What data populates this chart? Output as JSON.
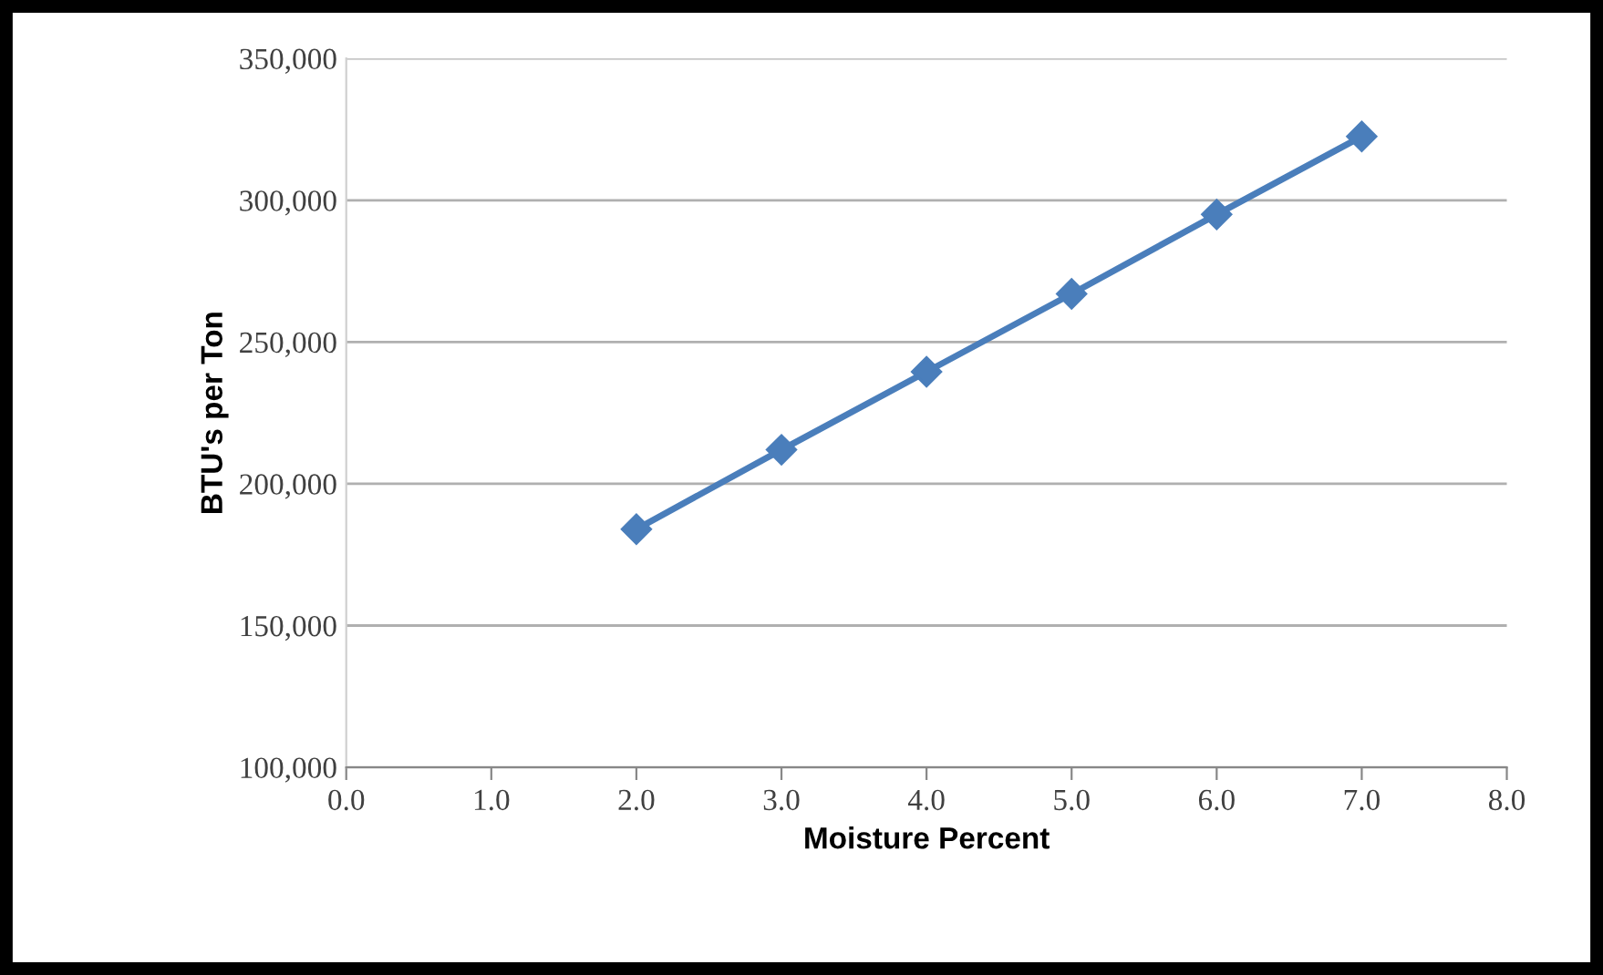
{
  "chart_data": {
    "type": "line",
    "xlabel": "Moisture Percent",
    "ylabel": "BTU's per Ton",
    "x": [
      2,
      3,
      4,
      5,
      6,
      7
    ],
    "series": [
      {
        "color": "#4a7ebb",
        "values": [
          184000,
          212000,
          239500,
          267000,
          295000,
          322500
        ]
      }
    ],
    "xlim": [
      0,
      8
    ],
    "xticks": [
      {
        "value": 0,
        "label": "0.0"
      },
      {
        "value": 1,
        "label": "1.0"
      },
      {
        "value": 2,
        "label": "2.0"
      },
      {
        "value": 3,
        "label": "3.0"
      },
      {
        "value": 4,
        "label": "4.0"
      },
      {
        "value": 5,
        "label": "5.0"
      },
      {
        "value": 6,
        "label": "6.0"
      },
      {
        "value": 7,
        "label": "7.0"
      },
      {
        "value": 8,
        "label": "8.0"
      }
    ],
    "ylim": [
      100000,
      350000
    ],
    "yticks": [
      {
        "value": 100000,
        "label": "100,000"
      },
      {
        "value": 150000,
        "label": "150,000"
      },
      {
        "value": 200000,
        "label": "200,000"
      },
      {
        "value": 250000,
        "label": "250,000"
      },
      {
        "value": 300000,
        "label": "300,000"
      },
      {
        "value": 350000,
        "label": "350,000"
      }
    ],
    "grid": "y",
    "marker": "diamond",
    "line_style": "solid",
    "legend": false
  }
}
